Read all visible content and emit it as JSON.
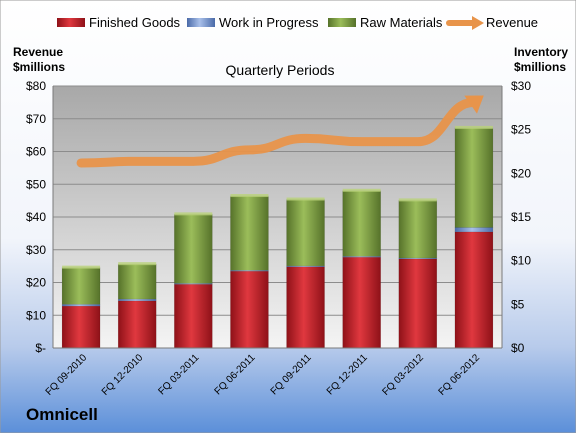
{
  "chart_data": {
    "type": "bar",
    "subtitle": "Quarterly Periods",
    "company": "Omnicell",
    "left_axis": {
      "label_line1": "Revenue",
      "label_line2": "$millions",
      "range": [
        0,
        80
      ],
      "ticks": [
        "$-",
        "$10",
        "$20",
        "$30",
        "$40",
        "$50",
        "$60",
        "$70",
        "$80"
      ]
    },
    "right_axis": {
      "label_line1": "Inventory",
      "label_line2": "$millions",
      "range": [
        0,
        30
      ],
      "ticks": [
        "$0",
        "$5",
        "$10",
        "$15",
        "$20",
        "$25",
        "$30"
      ]
    },
    "categories": [
      "FQ 09-2010",
      "FQ 12-2010",
      "FQ 03-2011",
      "FQ 06-2011",
      "FQ 09-2011",
      "FQ 12-2011",
      "FQ 03-2012",
      "FQ 06-2012"
    ],
    "series": [
      {
        "name": "Finished Goods",
        "axis": "right",
        "stacked": true,
        "color": "#c0202a",
        "values": [
          4.8,
          5.4,
          7.3,
          8.8,
          9.3,
          10.4,
          10.2,
          13.3
        ]
      },
      {
        "name": "Work in Progress",
        "axis": "right",
        "stacked": true,
        "color": "#6f8fc8",
        "values": [
          0.2,
          0.2,
          0.1,
          0.1,
          0.1,
          0.1,
          0.1,
          0.5
        ]
      },
      {
        "name": "Raw Materials",
        "axis": "right",
        "stacked": true,
        "color": "#7a9a3a",
        "values": [
          4.2,
          4.0,
          7.9,
          8.5,
          7.6,
          7.5,
          6.6,
          11.4
        ]
      },
      {
        "name": "Revenue",
        "axis": "left",
        "type": "line",
        "color": "#e8944a",
        "values": [
          56.5,
          57,
          57,
          60.5,
          64,
          63,
          63,
          75
        ]
      }
    ],
    "legend_position": "top",
    "grid": true
  }
}
